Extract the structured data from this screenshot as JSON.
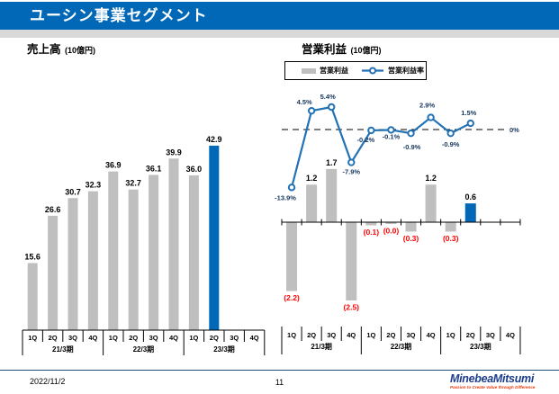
{
  "header": {
    "title": "ユーシン事業セグメント"
  },
  "footer": {
    "date": "2022/11/2",
    "page": "11",
    "logo": "MinebeaMitsumi",
    "tagline": "Passion to Create Value through Difference"
  },
  "colors": {
    "header_blue": "#0068B7",
    "highlight_blue": "#0068B7",
    "bar_gray": "#BFBFBF",
    "line_blue": "#2272B5",
    "negative_red": "#FF0000",
    "label_navy": "#17375E",
    "axis_black": "#000000",
    "footer_line": "#1F4E79",
    "logo_blue": "#1B3C8C",
    "logo_red": "#E8380D"
  },
  "chart_data": [
    {
      "type": "bar",
      "title": "売上高",
      "unit": "(10億円)",
      "categories": [
        "1Q",
        "2Q",
        "3Q",
        "4Q",
        "1Q",
        "2Q",
        "3Q",
        "4Q",
        "1Q",
        "2Q",
        "3Q",
        "4Q"
      ],
      "year_groups": [
        "21/3期",
        "22/3期",
        "23/3期"
      ],
      "values": [
        15.6,
        26.6,
        30.7,
        32.3,
        36.9,
        32.7,
        36.1,
        39.9,
        36.0,
        42.9
      ],
      "labels": [
        "15.6",
        "26.6",
        "30.7",
        "32.3",
        "36.9",
        "32.7",
        "36.1",
        "39.9",
        "36.0",
        "42.9"
      ],
      "highlight_index": 9,
      "grid": false,
      "ylim": [
        0,
        45
      ]
    },
    {
      "type": "bar+line",
      "title": "営業利益",
      "unit": "(10億円)",
      "legend": [
        "営業利益",
        "営業利益率"
      ],
      "legend_position": "top",
      "categories": [
        "1Q",
        "2Q",
        "3Q",
        "4Q",
        "1Q",
        "2Q",
        "3Q",
        "4Q",
        "1Q",
        "2Q",
        "3Q",
        "4Q"
      ],
      "year_groups": [
        "21/3期",
        "22/3期",
        "23/3期"
      ],
      "series": [
        {
          "name": "営業利益",
          "type": "bar",
          "values": [
            -2.2,
            1.2,
            1.7,
            -2.5,
            -0.1,
            -0.0,
            -0.3,
            1.2,
            -0.3,
            0.6
          ],
          "labels": [
            "(2.2)",
            "1.2",
            "1.7",
            "(2.5)",
            "(0.1)",
            "(0.0)",
            "(0.3)",
            "1.2",
            "(0.3)",
            "0.6"
          ],
          "ylim": [
            -3,
            2
          ]
        },
        {
          "name": "営業利益率",
          "type": "line",
          "values": [
            -13.9,
            4.5,
            5.4,
            -7.9,
            -0.2,
            -0.1,
            -0.9,
            2.9,
            -0.9,
            1.5
          ],
          "labels": [
            "-13.9%",
            "4.5%",
            "5.4%",
            "-7.9%",
            "-0.2%",
            "-0.1%",
            "-0.9%",
            "2.9%",
            "-0.9%",
            "1.5%"
          ],
          "label_offsets": [
            [
              -7,
              14
            ],
            [
              -8,
              -7
            ],
            [
              -4,
              -9
            ],
            [
              0,
              13
            ],
            [
              -6,
              13
            ],
            [
              0,
              10
            ],
            [
              1,
              18
            ],
            [
              -4,
              -11
            ],
            [
              0,
              15
            ],
            [
              -2,
              -9
            ]
          ],
          "ylim": [
            -16,
            8
          ]
        }
      ],
      "zero_line_label": "0%",
      "highlight_index": 9,
      "grid": false
    }
  ]
}
